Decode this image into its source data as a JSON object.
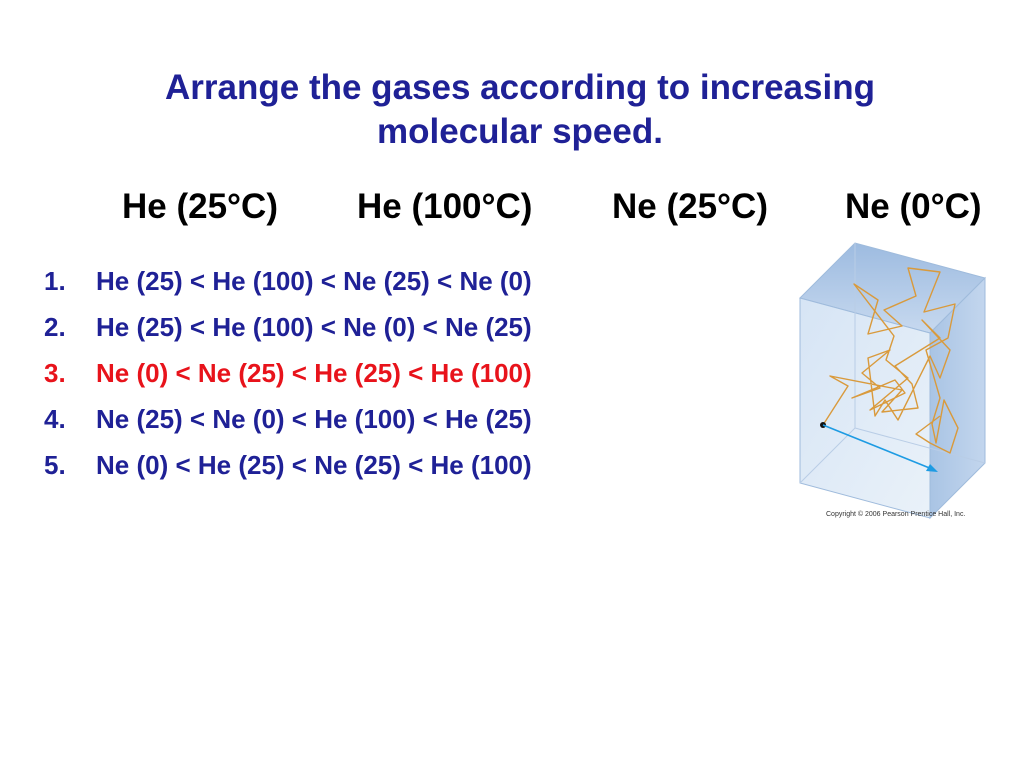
{
  "title": {
    "line1": "Arrange the gases according to increasing",
    "line2": "molecular speed."
  },
  "gases": [
    "He (25°C)",
    "He (100°C)",
    "Ne (25°C)",
    "Ne (0°C)"
  ],
  "options": [
    {
      "number": "1.",
      "text": "He (25) < He (100) < Ne (25) < Ne (0)"
    },
    {
      "number": "2.",
      "text": "He (25) < He (100) < Ne (0) < Ne (25)"
    },
    {
      "number": "3.",
      "text": "Ne (0) < Ne (25) < He (25) < He (100)"
    },
    {
      "number": "4.",
      "text": "Ne (25) < Ne (0) < He (100) < He (25)"
    },
    {
      "number": "5.",
      "text": "Ne (0) < He (25) < Ne (25) < He (100)"
    }
  ],
  "colors": {
    "title": "#1f2196",
    "option_text": "#1f2196",
    "highlighted_option": "#e8131b",
    "gas_labels": "#000000"
  },
  "figure": {
    "icon": "gas-container-molecule-path-icon",
    "copyright": "Copyright © 2006 Pearson Prentice Hall, Inc."
  }
}
